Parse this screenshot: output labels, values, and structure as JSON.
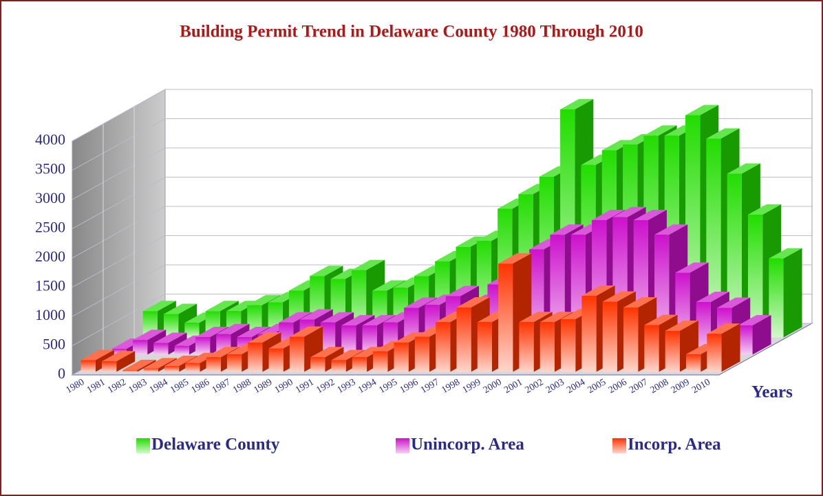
{
  "chart_data": {
    "type": "bar3d",
    "title": "Building Permit Trend in Delaware County 1980 Through 2010",
    "x_label": "Years",
    "categories": [
      "1980",
      "1981",
      "1982",
      "1983",
      "1984",
      "1985",
      "1986",
      "1987",
      "1988",
      "1989",
      "1990",
      "1991",
      "1992",
      "1993",
      "1994",
      "1995",
      "1996",
      "1997",
      "1998",
      "1999",
      "2000",
      "2001",
      "2002",
      "2003",
      "2004",
      "2005",
      "2006",
      "2007",
      "2008",
      "2009",
      "2010"
    ],
    "series": [
      {
        "name": "Delaware County",
        "color": "#22dd00",
        "values": [
          450,
          400,
          250,
          450,
          450,
          550,
          600,
          800,
          1050,
          1000,
          1150,
          800,
          850,
          1050,
          1300,
          1550,
          1650,
          2200,
          2450,
          2750,
          3900,
          2950,
          3200,
          3300,
          3450,
          3450,
          3800,
          3400,
          2800,
          2100,
          1350
        ]
      },
      {
        "name": "Unincorp. Area",
        "color": "#cc11cc",
        "values": [
          100,
          250,
          200,
          150,
          300,
          350,
          300,
          350,
          550,
          600,
          550,
          500,
          500,
          550,
          800,
          850,
          1000,
          850,
          1200,
          1300,
          1800,
          2050,
          2050,
          2300,
          2350,
          2300,
          2050,
          1400,
          900,
          800,
          500
        ]
      },
      {
        "name": "Incorp. Area",
        "color": "#ff3300",
        "values": [
          200,
          180,
          30,
          60,
          100,
          150,
          250,
          300,
          500,
          400,
          600,
          250,
          200,
          250,
          350,
          500,
          600,
          850,
          1100,
          850,
          1850,
          850,
          850,
          900,
          1300,
          1200,
          1100,
          800,
          700,
          300,
          650
        ]
      }
    ],
    "ylim": [
      0,
      4000
    ],
    "yticks": [
      0,
      500,
      1000,
      1500,
      2000,
      2500,
      3000,
      3500,
      4000
    ],
    "grid": true,
    "legend": "bottom"
  }
}
